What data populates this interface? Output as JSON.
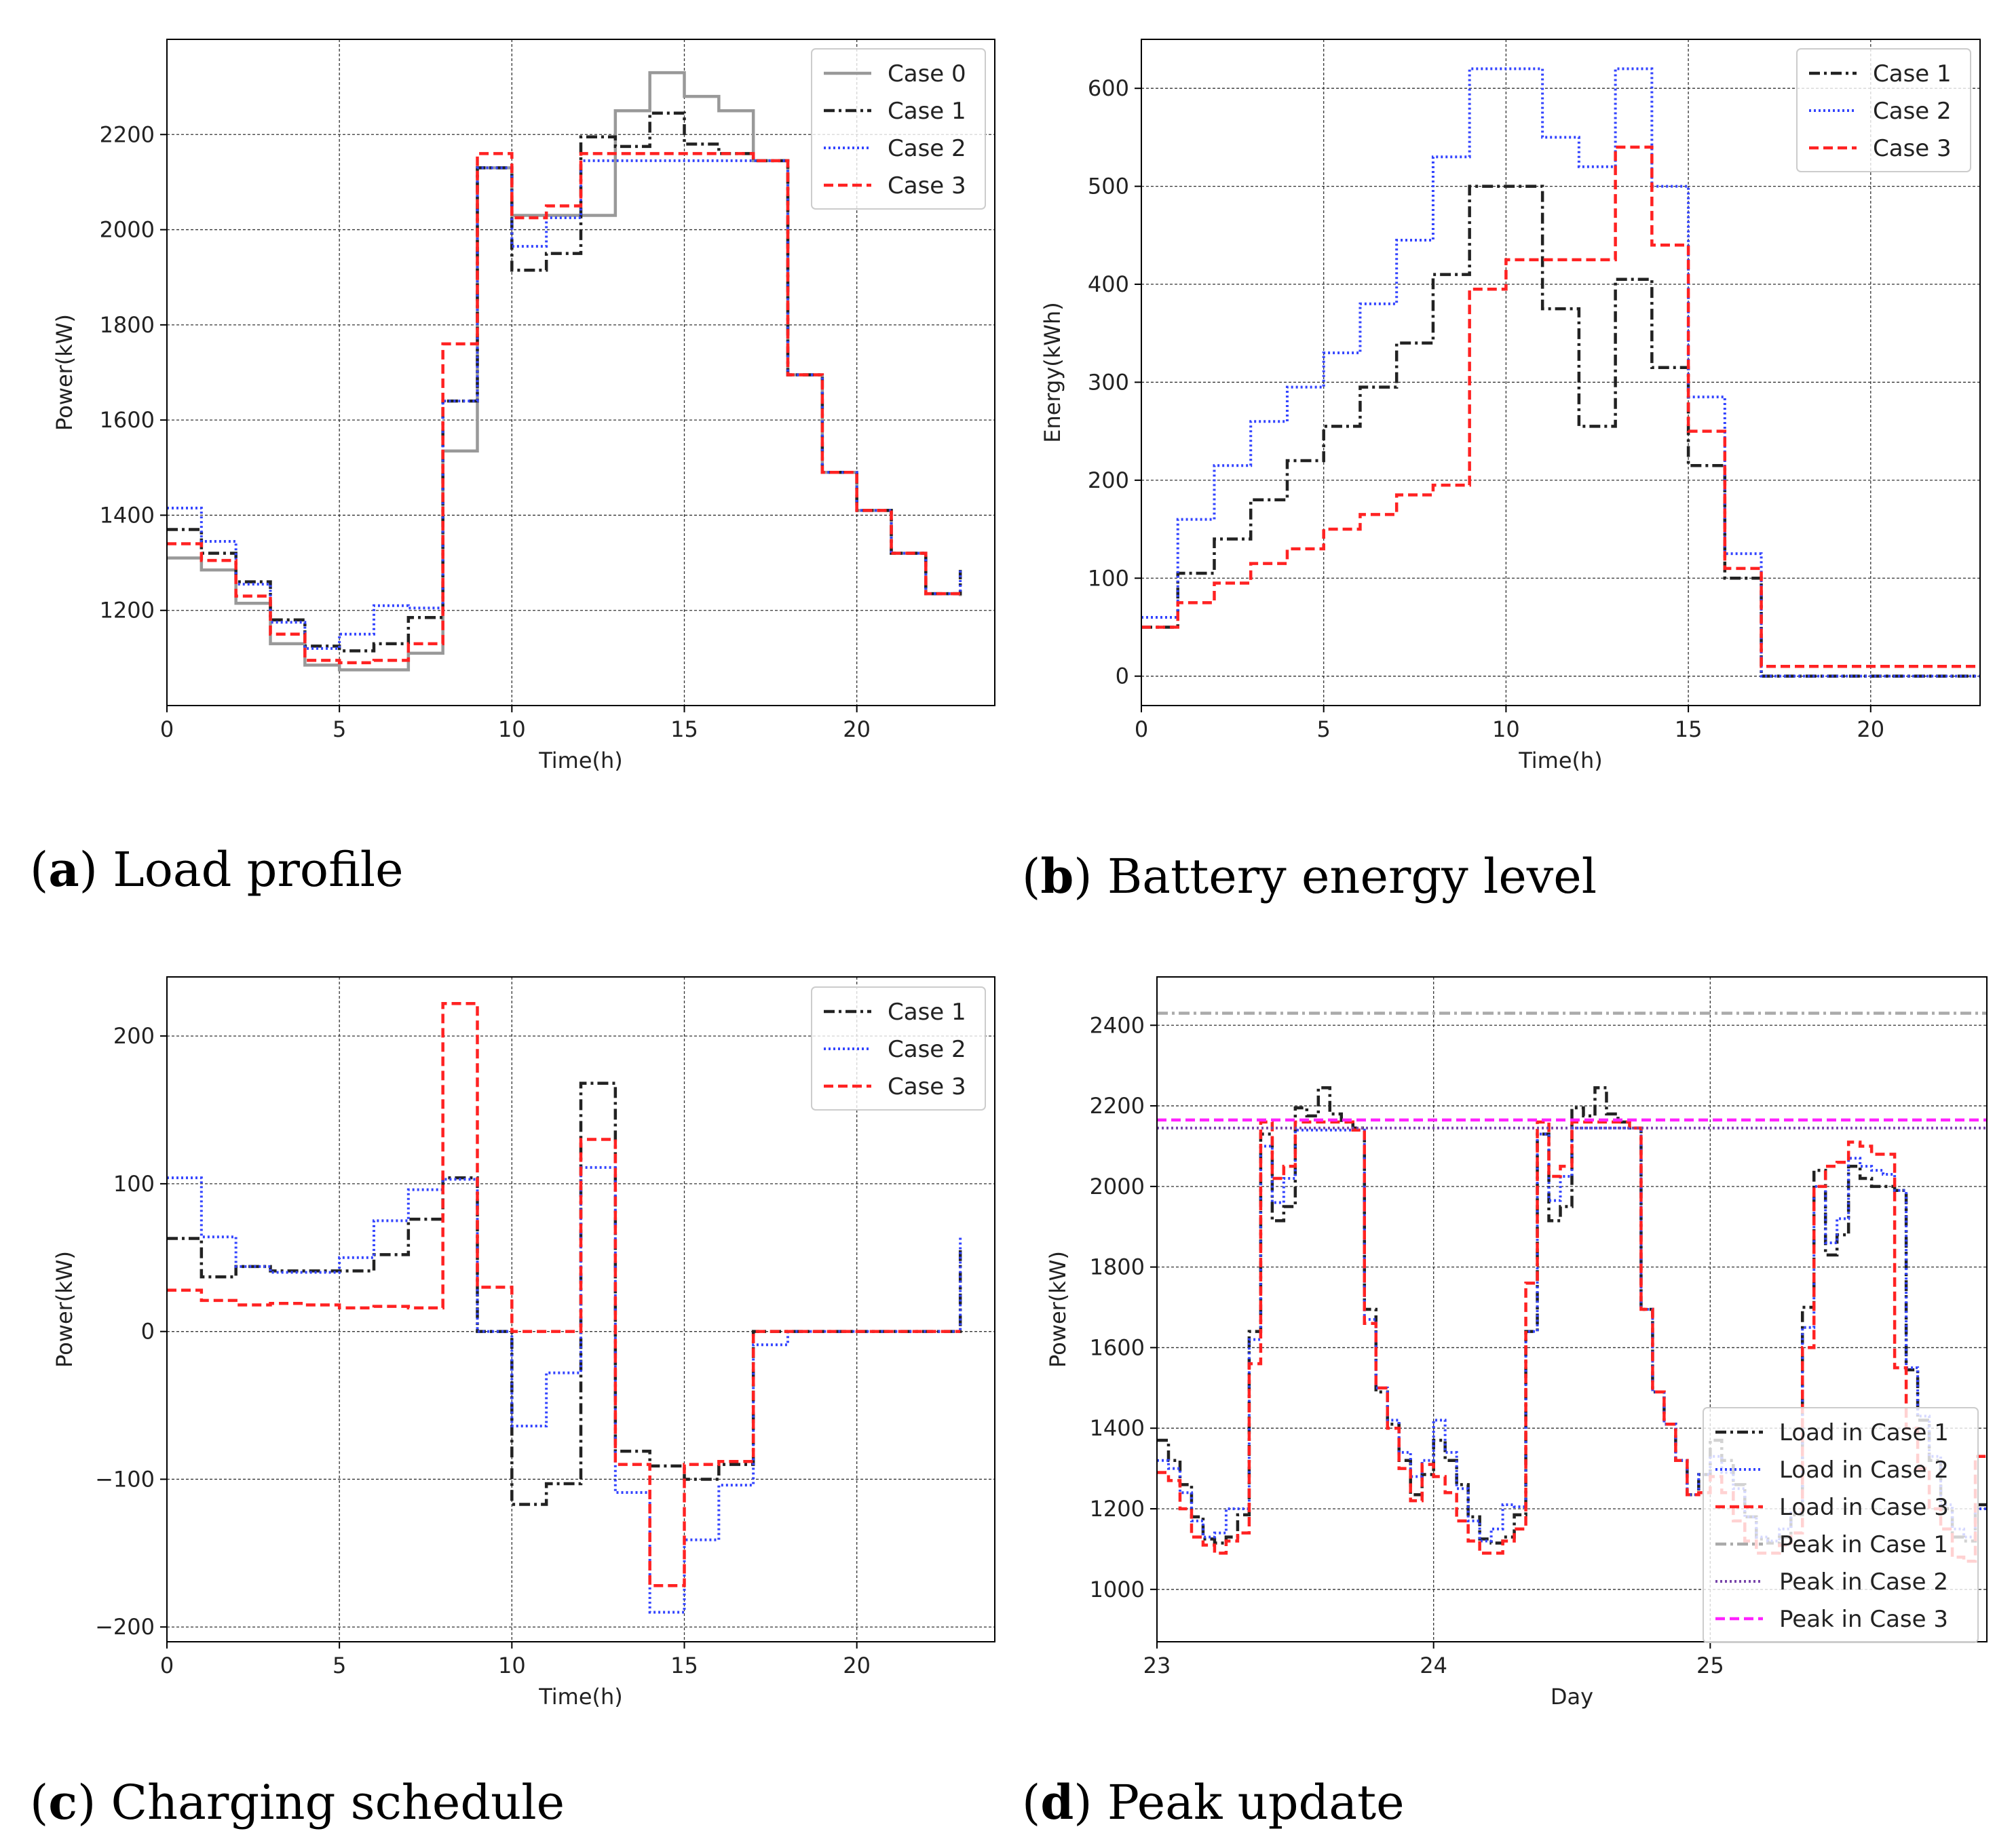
{
  "figure": {
    "panels": [
      {
        "letter": "a",
        "caption": "Load profile"
      },
      {
        "letter": "b",
        "caption": "Battery energy level"
      },
      {
        "letter": "c",
        "caption": "Charging schedule"
      },
      {
        "letter": "d",
        "caption": "Peak update"
      }
    ]
  },
  "colors": {
    "case0": "#999999",
    "case1": "#222222",
    "case2": "#3344ff",
    "case3": "#ff2222",
    "peak1": "#aaaaaa",
    "peak2": "#7744aa",
    "peak3": "#ff22ff"
  },
  "chart_data": [
    {
      "id": "a",
      "type": "line",
      "step": true,
      "title": "",
      "xlabel": "Time(h)",
      "ylabel": "Power(kW)",
      "xlim": [
        0,
        24
      ],
      "ylim": [
        1000,
        2400
      ],
      "xticks": [
        0,
        5,
        10,
        15,
        20
      ],
      "yticks": [
        1200,
        1400,
        1600,
        1800,
        2000,
        2200
      ],
      "legend_position": "top-right",
      "x": [
        0,
        1,
        2,
        3,
        4,
        5,
        6,
        7,
        8,
        9,
        10,
        11,
        12,
        13,
        14,
        15,
        16,
        17,
        18,
        19,
        20,
        21,
        22,
        23
      ],
      "series": [
        {
          "name": "Case 0",
          "style": "solid",
          "color": "case0",
          "values": [
            1310,
            1285,
            1215,
            1130,
            1085,
            1075,
            1075,
            1110,
            1535,
            2130,
            2030,
            2030,
            2030,
            2250,
            2330,
            2280,
            2250,
            2145,
            1695,
            1490,
            1410,
            1320,
            1235,
            1230
          ]
        },
        {
          "name": "Case 1",
          "style": "dashdot",
          "color": "case1",
          "values": [
            1370,
            1320,
            1260,
            1180,
            1125,
            1115,
            1130,
            1185,
            1640,
            2130,
            1915,
            1950,
            2195,
            2175,
            2245,
            2180,
            2160,
            2145,
            1695,
            1490,
            1410,
            1320,
            1235,
            1285
          ]
        },
        {
          "name": "Case 2",
          "style": "dotted",
          "color": "case2",
          "values": [
            1415,
            1345,
            1255,
            1175,
            1120,
            1150,
            1210,
            1205,
            1640,
            2130,
            1965,
            2025,
            2145,
            2145,
            2145,
            2145,
            2145,
            2145,
            1695,
            1490,
            1410,
            1320,
            1235,
            1285
          ]
        },
        {
          "name": "Case 3",
          "style": "dashed",
          "color": "case3",
          "values": [
            1340,
            1305,
            1230,
            1150,
            1095,
            1090,
            1095,
            1130,
            1760,
            2160,
            2025,
            2050,
            2160,
            2160,
            2160,
            2160,
            2160,
            2145,
            1695,
            1490,
            1410,
            1320,
            1235,
            1240
          ]
        }
      ]
    },
    {
      "id": "b",
      "type": "line",
      "step": true,
      "title": "",
      "xlabel": "Time(h)",
      "ylabel": "Energy(kWh)",
      "xlim": [
        0,
        23
      ],
      "ylim": [
        -30,
        650
      ],
      "xticks": [
        0,
        5,
        10,
        15,
        20
      ],
      "yticks": [
        0,
        100,
        200,
        300,
        400,
        500,
        600
      ],
      "legend_position": "top-right",
      "x": [
        0,
        1,
        2,
        3,
        4,
        5,
        6,
        7,
        8,
        9,
        10,
        11,
        12,
        13,
        14,
        15,
        16,
        17,
        18,
        19,
        20,
        21,
        22,
        23
      ],
      "series": [
        {
          "name": "Case 1",
          "style": "dashdot",
          "color": "case1",
          "values": [
            50,
            105,
            140,
            180,
            220,
            255,
            295,
            340,
            410,
            500,
            500,
            375,
            255,
            405,
            315,
            215,
            100,
            0,
            0,
            0,
            0,
            0,
            0,
            0
          ]
        },
        {
          "name": "Case 2",
          "style": "dotted",
          "color": "case2",
          "values": [
            60,
            160,
            215,
            260,
            295,
            330,
            380,
            445,
            530,
            620,
            620,
            550,
            520,
            620,
            500,
            285,
            125,
            0,
            0,
            0,
            0,
            0,
            0,
            0
          ]
        },
        {
          "name": "Case 3",
          "style": "dashed",
          "color": "case3",
          "values": [
            50,
            75,
            95,
            115,
            130,
            150,
            165,
            185,
            195,
            395,
            425,
            425,
            425,
            540,
            440,
            250,
            110,
            10,
            10,
            10,
            10,
            10,
            10,
            10
          ]
        }
      ]
    },
    {
      "id": "c",
      "type": "line",
      "step": true,
      "title": "",
      "xlabel": "Time(h)",
      "ylabel": "Power(kW)",
      "xlim": [
        0,
        24
      ],
      "ylim": [
        -210,
        240
      ],
      "xticks": [
        0,
        5,
        10,
        15,
        20
      ],
      "yticks": [
        -200,
        -100,
        0,
        100,
        200
      ],
      "legend_position": "top-right",
      "x": [
        0,
        1,
        2,
        3,
        4,
        5,
        6,
        7,
        8,
        9,
        10,
        11,
        12,
        13,
        14,
        15,
        16,
        17,
        18,
        19,
        20,
        21,
        22,
        23
      ],
      "series": [
        {
          "name": "Case 1",
          "style": "dashdot",
          "color": "case1",
          "values": [
            63,
            37,
            44,
            41,
            41,
            41,
            52,
            76,
            104,
            0,
            -117,
            -103,
            168,
            -81,
            -91,
            -100,
            -90,
            0,
            0,
            0,
            0,
            0,
            0,
            55
          ]
        },
        {
          "name": "Case 2",
          "style": "dotted",
          "color": "case2",
          "values": [
            104,
            64,
            44,
            40,
            40,
            50,
            75,
            96,
            103,
            0,
            -64,
            -28,
            111,
            -109,
            -190,
            -141,
            -104,
            -9,
            0,
            0,
            0,
            0,
            0,
            65
          ]
        },
        {
          "name": "Case 3",
          "style": "dashed",
          "color": "case3",
          "values": [
            28,
            21,
            18,
            19,
            18,
            16,
            17,
            16,
            222,
            30,
            0,
            0,
            130,
            -90,
            -172,
            -90,
            -88,
            0,
            0,
            0,
            0,
            0,
            0,
            0
          ]
        }
      ]
    },
    {
      "id": "d",
      "type": "line",
      "step": true,
      "title": "",
      "xlabel": "Day",
      "ylabel": "Power(kW)",
      "xlim": [
        23,
        26
      ],
      "ylim": [
        870,
        2520
      ],
      "xticks": [
        23,
        24,
        25
      ],
      "yticks": [
        1000,
        1200,
        1400,
        1600,
        1800,
        2000,
        2200,
        2400
      ],
      "legend_position": "bottom-right",
      "hour_step_days": 0.0416667,
      "series": [
        {
          "name": "Load in Case 1",
          "style": "dashdot",
          "color": "case1",
          "values": [
            1370,
            1320,
            1260,
            1180,
            1125,
            1115,
            1130,
            1185,
            1640,
            2130,
            1915,
            1950,
            2195,
            2175,
            2245,
            2180,
            2160,
            2145,
            1695,
            1490,
            1410,
            1320,
            1235,
            1285,
            1370,
            1320,
            1260,
            1180,
            1125,
            1115,
            1130,
            1185,
            1640,
            2130,
            1915,
            1950,
            2195,
            2175,
            2245,
            2180,
            2160,
            2145,
            1695,
            1490,
            1410,
            1320,
            1235,
            1285,
            1370,
            1320,
            1260,
            1180,
            1125,
            1115,
            1130,
            1185,
            1700,
            2040,
            1830,
            1880,
            2050,
            2020,
            2000,
            2000,
            1990,
            1545,
            1420,
            1320,
            1200,
            1130,
            1120,
            1210
          ]
        },
        {
          "name": "Load in Case 2",
          "style": "dotted",
          "color": "case2",
          "values": [
            1320,
            1300,
            1240,
            1170,
            1130,
            1140,
            1200,
            1200,
            1620,
            2100,
            1960,
            2020,
            2140,
            2140,
            2140,
            2140,
            2140,
            2140,
            1670,
            1500,
            1420,
            1340,
            1280,
            1320,
            1420,
            1340,
            1250,
            1170,
            1120,
            1150,
            1210,
            1205,
            1640,
            2130,
            1965,
            2025,
            2145,
            2145,
            2145,
            2145,
            2145,
            2145,
            1695,
            1490,
            1410,
            1320,
            1235,
            1285,
            1330,
            1290,
            1250,
            1180,
            1130,
            1120,
            1150,
            1190,
            1650,
            2000,
            1860,
            1920,
            2070,
            2050,
            2040,
            2030,
            1990,
            1550,
            1430,
            1330,
            1210,
            1150,
            1130,
            1200
          ]
        },
        {
          "name": "Load in Case 3",
          "style": "dashed",
          "color": "case3",
          "values": [
            1290,
            1270,
            1200,
            1130,
            1110,
            1090,
            1120,
            1140,
            1560,
            2160,
            2020,
            2050,
            2160,
            2160,
            2160,
            2160,
            2160,
            2140,
            1660,
            1500,
            1400,
            1300,
            1220,
            1310,
            1280,
            1240,
            1170,
            1120,
            1090,
            1090,
            1120,
            1150,
            1760,
            2160,
            2025,
            2050,
            2160,
            2160,
            2160,
            2160,
            2160,
            2145,
            1695,
            1490,
            1410,
            1320,
            1235,
            1240,
            1280,
            1240,
            1170,
            1120,
            1090,
            1090,
            1110,
            1140,
            1600,
            2000,
            2050,
            2060,
            2110,
            2100,
            2080,
            2080,
            1550,
            1400,
            1300,
            1200,
            1150,
            1080,
            1070,
            1330
          ]
        },
        {
          "name": "Peak in Case 1",
          "style": "dashdot",
          "color": "peak1",
          "constant": 2430
        },
        {
          "name": "Peak in Case 2",
          "style": "dotted",
          "color": "peak2",
          "constant": 2145
        },
        {
          "name": "Peak in Case 3",
          "style": "dashed",
          "color": "peak3",
          "constant": 2165
        }
      ]
    }
  ]
}
